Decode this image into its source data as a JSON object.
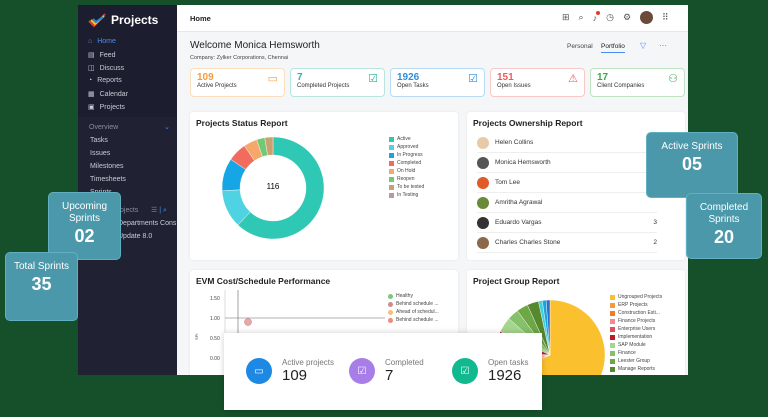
{
  "app": {
    "name": "Projects",
    "breadcrumb": "Home"
  },
  "sidebar": {
    "items": [
      {
        "label": "Home",
        "icon": "home-icon"
      },
      {
        "label": "Feed",
        "icon": "feed-icon"
      },
      {
        "label": "Discuss",
        "icon": "discuss-icon"
      },
      {
        "label": "Reports",
        "icon": "reports-icon"
      },
      {
        "label": "Calendar",
        "icon": "calendar-icon"
      },
      {
        "label": "Projects",
        "icon": "projects-icon"
      }
    ],
    "overview": "Overview",
    "sub": [
      "Tasks",
      "Issues",
      "Milestones",
      "Timesheets",
      "Sprints"
    ],
    "projects_header": "Projects",
    "projects": [
      "Departments Cons",
      "Update 8.0"
    ]
  },
  "welcome": {
    "title": "Welcome Monica Hemsworth",
    "company": "Company: Zylker Corporations, Chennai",
    "tabs": [
      "Personal",
      "Portfolio"
    ],
    "active_tab": "Portfolio"
  },
  "stats": [
    {
      "value": "109",
      "label": "Active Projects",
      "color": "#f59b3a"
    },
    {
      "value": "7",
      "label": "Completed Projects",
      "color": "#2bb5a0"
    },
    {
      "value": "1926",
      "label": "Open Tasks",
      "color": "#2a8fe0"
    },
    {
      "value": "151",
      "label": "Open Issues",
      "color": "#ee5a5a"
    },
    {
      "value": "17",
      "label": "Client Companies",
      "color": "#3aaa48"
    }
  ],
  "status_report": {
    "title": "Projects Status Report",
    "total": "116"
  },
  "chart_data": [
    {
      "type": "pie",
      "title": "Projects Status Report",
      "center_label": "116",
      "categories": [
        "Active",
        "Approved",
        "In Progress",
        "Completed",
        "On Hold",
        "Reopen",
        "To be tested",
        "In Testing"
      ],
      "values": [
        72,
        14,
        12,
        7,
        5,
        3,
        3,
        0
      ],
      "colors": [
        "#2ec8b5",
        "#4fd3e3",
        "#16a6e6",
        "#f26c5e",
        "#f5a86a",
        "#72c975",
        "#c9a070",
        "#b89a9a"
      ],
      "legend": "right"
    },
    {
      "type": "scatter",
      "title": "EVM Cost/Schedule Performance",
      "ylabel": "SPI",
      "yticks": [
        "1.50",
        "1.00",
        "0.50",
        "0.00"
      ],
      "legend_entries": [
        "Healthy",
        "Behind schedule ...",
        "Ahead of schedul...",
        "Behind schedule ..."
      ],
      "legend_colors": [
        "#7cc47f",
        "#d08a8a",
        "#f5c07a",
        "#ef8a80"
      ],
      "points": [
        {
          "y": 0.9
        }
      ]
    },
    {
      "type": "pie",
      "title": "Project Group Report",
      "categories": [
        "Ungrouped Projects",
        "ERP Projects",
        "Construction Esti...",
        "Finance Projects",
        "Enterprise Users",
        "Implementation",
        "SAP Module",
        "Finance",
        "Leester Group",
        "Manage Reports"
      ],
      "values": [
        60,
        2,
        2,
        2,
        2,
        5,
        4,
        3,
        3,
        3
      ],
      "colors": [
        "#fbc02d",
        "#f59b3a",
        "#ef7d22",
        "#f28b8b",
        "#e84a5f",
        "#b71c2c",
        "#a5d68f",
        "#86c06a",
        "#6ea845",
        "#55882f"
      ],
      "extra_colors": [
        "#3fd0e0",
        "#1ea0d8",
        "#2a6fd0"
      ],
      "legend": "right"
    }
  ],
  "ownership": {
    "title": "Projects Ownership Report",
    "rows": [
      {
        "name": "Helen Collins",
        "count": ""
      },
      {
        "name": "Monica Hemsworth",
        "count": ""
      },
      {
        "name": "Tom Lee",
        "count": ""
      },
      {
        "name": "Amritha Agrawal",
        "count": ""
      },
      {
        "name": "Eduardo Vargas",
        "count": "3"
      },
      {
        "name": "Charles Charles Stone",
        "count": "2"
      }
    ]
  },
  "sprints": {
    "active": {
      "label": "Active Sprints",
      "value": "05"
    },
    "completed": {
      "label": "Completed Sprints",
      "value": "20"
    },
    "upcoming": {
      "label": "Upcoming Sprints",
      "value": "02"
    },
    "total": {
      "label": "Total Sprints",
      "value": "35"
    }
  },
  "overlay": [
    {
      "label": "Active projects",
      "value": "109",
      "color": "#1e88e5"
    },
    {
      "label": "Completed",
      "value": "7",
      "color": "#a77de8"
    },
    {
      "label": "Open tasks",
      "value": "1926",
      "color": "#12b98e"
    }
  ]
}
